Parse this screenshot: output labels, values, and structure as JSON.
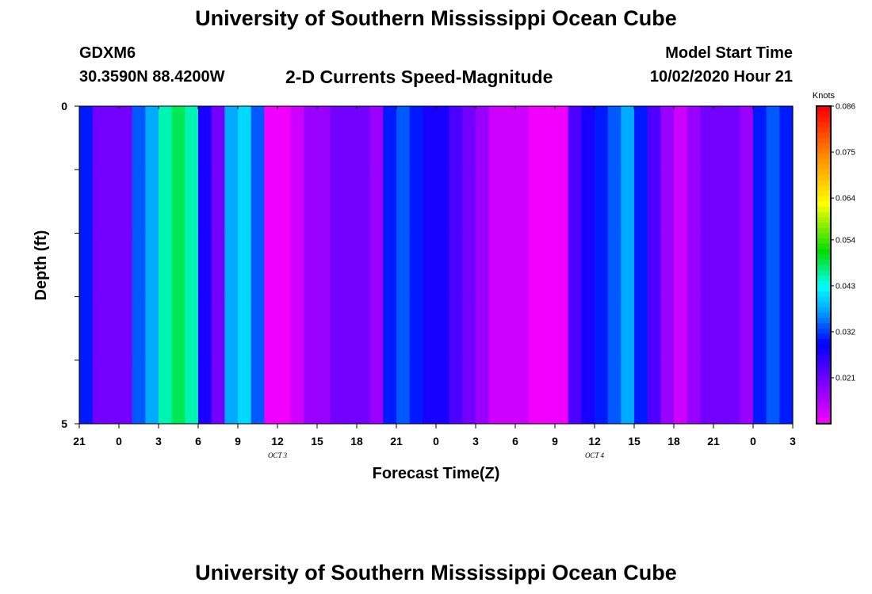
{
  "header": {
    "title": "University of Southern Mississippi Ocean Cube",
    "station_id": "GDXM6",
    "coordinates": "30.3590N 88.4200W",
    "plot_title": "2-D Currents Speed-Magnitude",
    "model_start_label": "Model Start Time",
    "model_start_value": "10/02/2020 Hour 21"
  },
  "footer": {
    "title": "University of Southern Mississippi Ocean Cube"
  },
  "chart_data": {
    "type": "heatmap",
    "title": "2-D Currents Speed-Magnitude",
    "xlabel": "Forecast Time(Z)",
    "ylabel": "Depth (ft)",
    "x_tick_labels": [
      "21",
      "0",
      "3",
      "6",
      "9",
      "12",
      "15",
      "18",
      "21",
      "0",
      "3",
      "6",
      "9",
      "12",
      "15",
      "18",
      "21",
      "0",
      "3"
    ],
    "date_labels": [
      {
        "label": "OCT 3",
        "after_tick": 5
      },
      {
        "label": "OCT 4",
        "after_tick": 13
      }
    ],
    "y_tick_labels": [
      "0",
      "5"
    ],
    "ylim": [
      0,
      5
    ],
    "colorbar": {
      "unit_label": "Knots",
      "ticks": [
        "0.086",
        "0.075",
        "0.064",
        "0.054",
        "0.043",
        "0.032",
        "0.021"
      ],
      "min": 0.01,
      "max": 0.086,
      "tick_values": [
        0.086,
        0.075,
        0.064,
        0.054,
        0.043,
        0.032,
        0.021
      ]
    },
    "depth_layers": 5,
    "time_hours": 54,
    "values": [
      [
        0.031,
        0.021,
        0.021,
        0.021,
        0.034,
        0.038,
        0.046,
        0.049,
        0.046,
        0.028,
        0.021,
        0.038,
        0.041,
        0.034,
        0.011,
        0.011,
        0.014,
        0.018,
        0.018,
        0.021,
        0.021,
        0.021,
        0.018,
        0.031,
        0.034,
        0.031,
        0.028,
        0.028,
        0.024,
        0.021,
        0.018,
        0.014,
        0.014,
        0.014,
        0.011,
        0.011,
        0.011,
        0.024,
        0.028,
        0.031,
        0.034,
        0.038,
        0.031,
        0.024,
        0.018,
        0.014,
        0.018,
        0.021,
        0.021,
        0.021,
        0.018,
        0.031,
        0.034,
        0.031
      ],
      [
        0.031,
        0.021,
        0.021,
        0.021,
        0.034,
        0.038,
        0.046,
        0.049,
        0.046,
        0.028,
        0.021,
        0.038,
        0.041,
        0.034,
        0.011,
        0.011,
        0.014,
        0.018,
        0.018,
        0.021,
        0.021,
        0.021,
        0.018,
        0.031,
        0.034,
        0.031,
        0.028,
        0.028,
        0.024,
        0.021,
        0.018,
        0.014,
        0.014,
        0.014,
        0.011,
        0.011,
        0.011,
        0.024,
        0.028,
        0.031,
        0.034,
        0.038,
        0.031,
        0.024,
        0.018,
        0.014,
        0.018,
        0.021,
        0.021,
        0.021,
        0.018,
        0.031,
        0.034,
        0.031
      ],
      [
        0.031,
        0.021,
        0.021,
        0.021,
        0.034,
        0.038,
        0.046,
        0.049,
        0.046,
        0.028,
        0.021,
        0.038,
        0.041,
        0.034,
        0.011,
        0.011,
        0.014,
        0.018,
        0.018,
        0.021,
        0.021,
        0.021,
        0.018,
        0.031,
        0.034,
        0.031,
        0.028,
        0.028,
        0.024,
        0.021,
        0.018,
        0.014,
        0.014,
        0.014,
        0.011,
        0.011,
        0.011,
        0.024,
        0.028,
        0.031,
        0.034,
        0.038,
        0.031,
        0.024,
        0.018,
        0.014,
        0.018,
        0.021,
        0.021,
        0.021,
        0.018,
        0.031,
        0.034,
        0.031
      ],
      [
        0.031,
        0.021,
        0.021,
        0.021,
        0.034,
        0.038,
        0.046,
        0.049,
        0.046,
        0.028,
        0.021,
        0.038,
        0.041,
        0.034,
        0.011,
        0.011,
        0.014,
        0.018,
        0.018,
        0.021,
        0.021,
        0.021,
        0.018,
        0.031,
        0.034,
        0.031,
        0.028,
        0.028,
        0.024,
        0.021,
        0.018,
        0.014,
        0.014,
        0.014,
        0.011,
        0.011,
        0.011,
        0.024,
        0.028,
        0.031,
        0.034,
        0.038,
        0.031,
        0.024,
        0.018,
        0.014,
        0.018,
        0.021,
        0.021,
        0.021,
        0.018,
        0.031,
        0.034,
        0.031
      ],
      [
        0.031,
        0.021,
        0.021,
        0.021,
        0.034,
        0.038,
        0.046,
        0.049,
        0.046,
        0.028,
        0.021,
        0.038,
        0.041,
        0.034,
        0.011,
        0.011,
        0.014,
        0.018,
        0.018,
        0.021,
        0.021,
        0.021,
        0.018,
        0.031,
        0.034,
        0.031,
        0.028,
        0.028,
        0.024,
        0.021,
        0.018,
        0.014,
        0.014,
        0.014,
        0.011,
        0.011,
        0.011,
        0.024,
        0.028,
        0.031,
        0.034,
        0.038,
        0.031,
        0.024,
        0.018,
        0.014,
        0.018,
        0.021,
        0.021,
        0.021,
        0.018,
        0.031,
        0.034,
        0.031
      ]
    ]
  }
}
